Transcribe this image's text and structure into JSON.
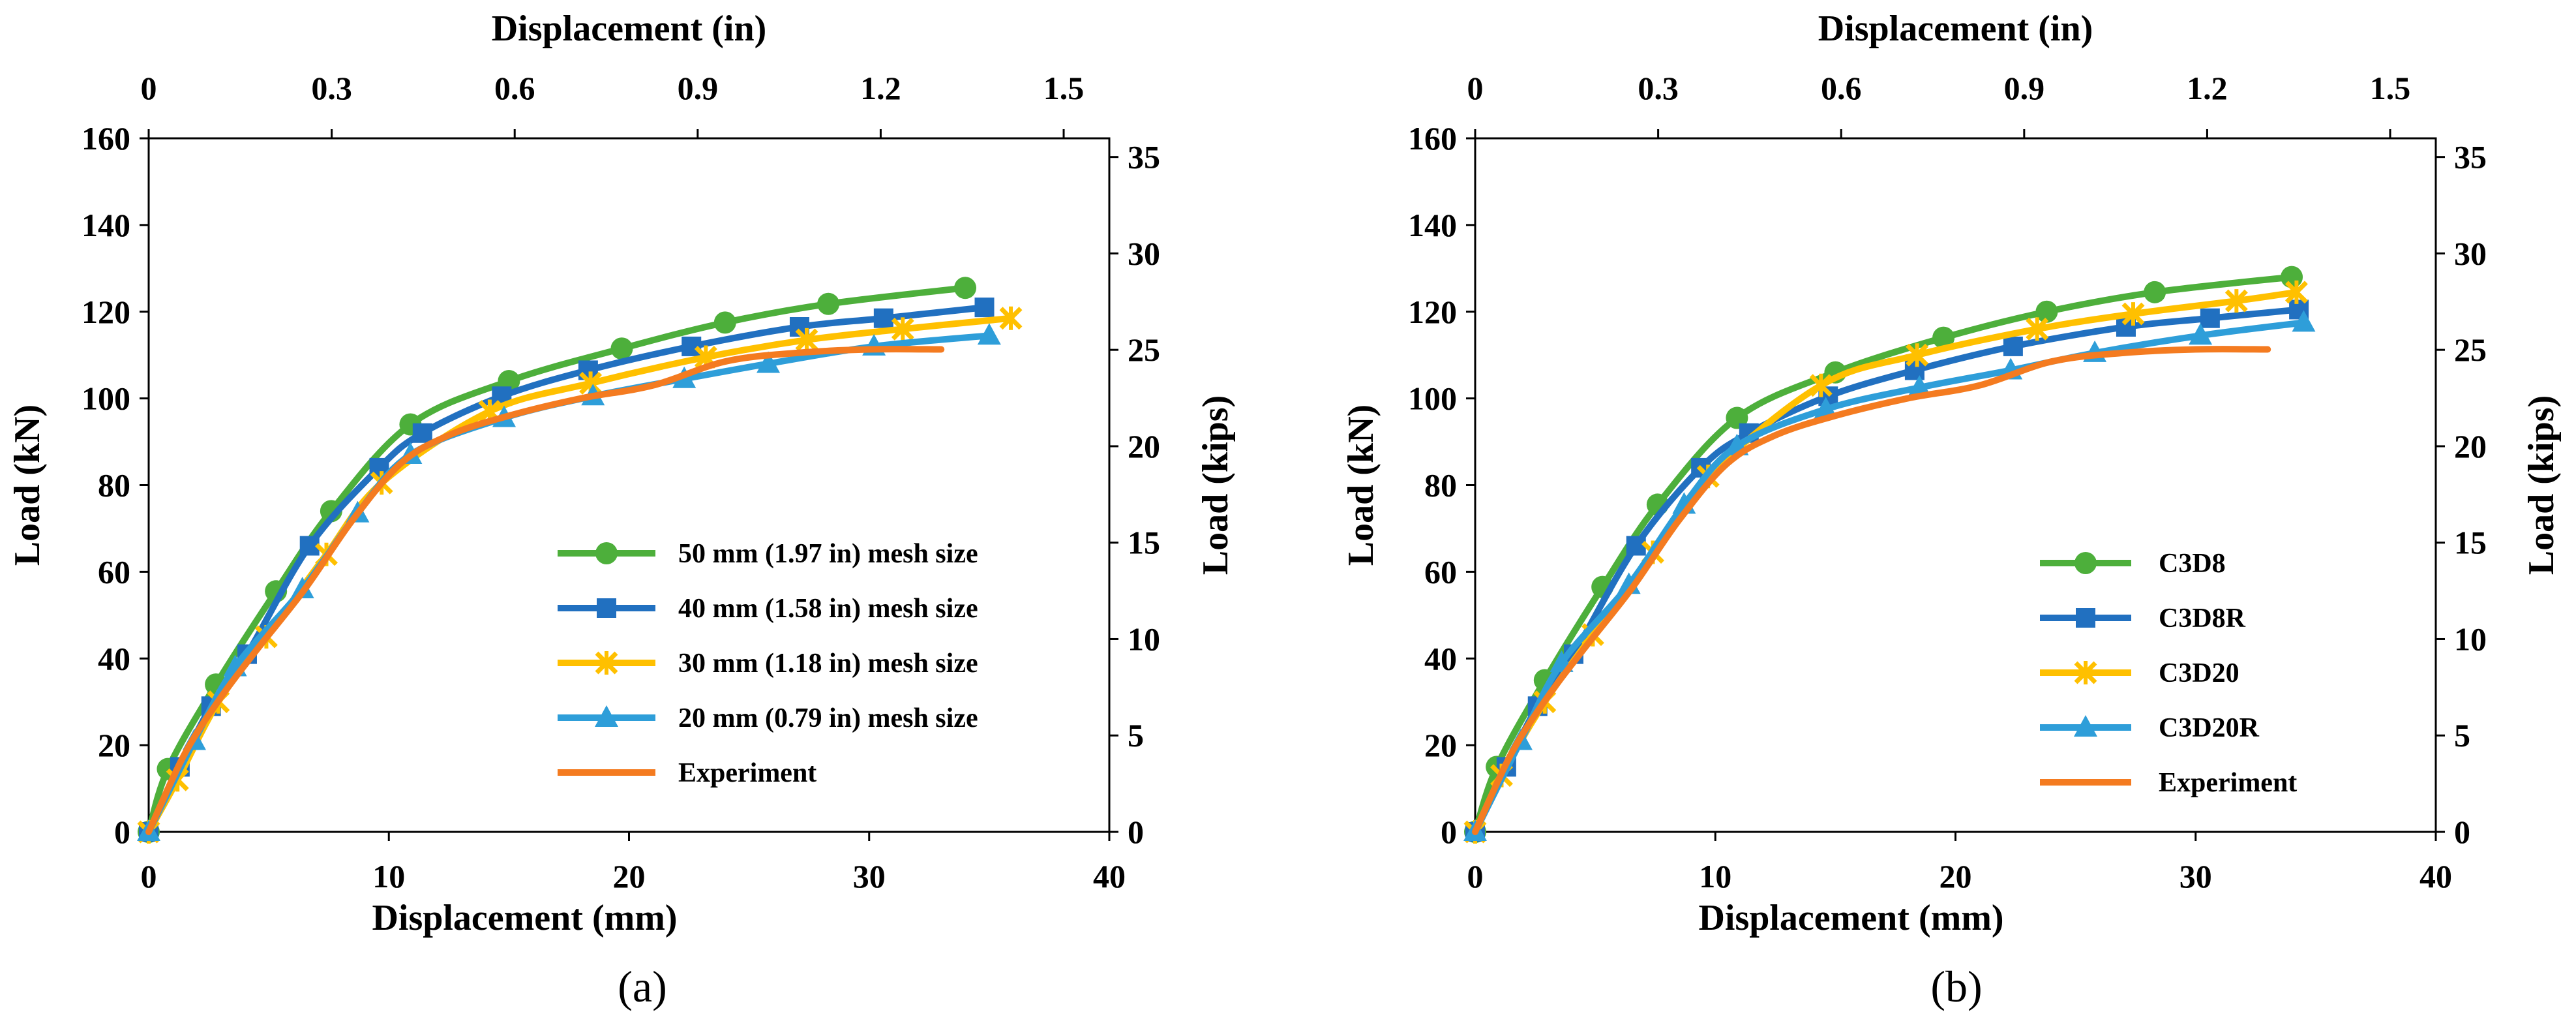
{
  "chart_data": [
    {
      "type": "line",
      "panel_label": "(a)",
      "xlabel": "Displacement (mm)",
      "x2label": "Displacement (in)",
      "ylabel": "Load (kN)",
      "y2label": "Load (kips)",
      "xlim": [
        0,
        40
      ],
      "x2lim": [
        0,
        1.5748
      ],
      "ylim": [
        0,
        160
      ],
      "y2lim": [
        0,
        35.97
      ],
      "xticks": [
        "0",
        "10",
        "20",
        "30",
        "40"
      ],
      "x2ticks": [
        "0",
        "0.3",
        "0.6",
        "0.9",
        "1.2",
        "1.5"
      ],
      "yticks": [
        "0",
        "20",
        "40",
        "60",
        "80",
        "100",
        "120",
        "140",
        "160"
      ],
      "y2ticks": [
        "0",
        "5",
        "10",
        "15",
        "20",
        "25",
        "30",
        "35"
      ],
      "legend_position": "bottom-right",
      "series": [
        {
          "name": "50 mm (1.97 in) mesh size",
          "color": "#4DAF3B",
          "marker": "circle",
          "x": [
            0,
            0.8,
            2.8,
            5.3,
            7.6,
            10.9,
            15,
            19.7,
            24,
            28.3,
            34
          ],
          "y": [
            0,
            14.5,
            34,
            55.5,
            74,
            94,
            104,
            111.5,
            117.5,
            121.8,
            125.5
          ]
        },
        {
          "name": "40 mm (1.58 in) mesh size",
          "color": "#2170C0",
          "marker": "square",
          "x": [
            0,
            1.3,
            2.6,
            4.1,
            6.7,
            9.6,
            11.4,
            14.7,
            18.3,
            22.6,
            27.1,
            30.6,
            34.8
          ],
          "y": [
            0,
            15,
            29,
            41,
            66,
            84,
            92,
            100.5,
            106.5,
            112,
            116.5,
            118.5,
            121
          ]
        },
        {
          "name": "30 mm (1.18 in) mesh size",
          "color": "#FFC000",
          "marker": "star",
          "x": [
            0,
            1.2,
            2.9,
            4.9,
            7.4,
            9.7,
            14.2,
            18.4,
            23.2,
            27.4,
            31.4,
            35.9
          ],
          "y": [
            0,
            12,
            30,
            45,
            64,
            80.5,
            97,
            103.5,
            109.5,
            113.5,
            116,
            118.5
          ]
        },
        {
          "name": "20 mm (0.79 in) mesh size",
          "color": "#2E9ED9",
          "marker": "triangle",
          "x": [
            0,
            1.9,
            3.6,
            6.4,
            8.7,
            10.9,
            14.8,
            18.5,
            22.3,
            25.8,
            30.2,
            35
          ],
          "y": [
            0,
            21,
            38,
            56,
            73.5,
            87,
            95.5,
            100.5,
            104.5,
            108,
            112,
            114.5
          ]
        },
        {
          "name": "Experiment",
          "color": "#F47B20",
          "marker": "none",
          "x": [
            0,
            1.5,
            3,
            4.5,
            6.5,
            8.5,
            10.5,
            12.5,
            15,
            18,
            21,
            24,
            27,
            30,
            33
          ],
          "y": [
            0,
            18,
            31,
            42,
            56,
            72,
            85,
            91.5,
            96,
            100,
            103,
            108.5,
            110.5,
            111.3,
            111.3
          ]
        }
      ]
    },
    {
      "type": "line",
      "panel_label": "(b)",
      "xlabel": "Displacement (mm)",
      "x2label": "Displacement (in)",
      "ylabel": "Load (kN)",
      "y2label": "Load (kips)",
      "xlim": [
        0,
        40
      ],
      "x2lim": [
        0,
        1.5748
      ],
      "ylim": [
        0,
        160
      ],
      "y2lim": [
        0,
        35.97
      ],
      "xticks": [
        "0",
        "10",
        "20",
        "30",
        "40"
      ],
      "x2ticks": [
        "0",
        "0.3",
        "0.6",
        "0.9",
        "1.2",
        "1.5"
      ],
      "yticks": [
        "0",
        "20",
        "40",
        "60",
        "80",
        "100",
        "120",
        "140",
        "160"
      ],
      "y2ticks": [
        "0",
        "5",
        "10",
        "15",
        "20",
        "25",
        "30",
        "35"
      ],
      "legend_position": "bottom-right",
      "series": [
        {
          "name": "C3D8",
          "color": "#4DAF3B",
          "marker": "circle",
          "x": [
            0,
            0.9,
            2.9,
            5.3,
            7.6,
            10.9,
            15,
            19.5,
            23.8,
            28.3,
            34
          ],
          "y": [
            0,
            15,
            35,
            56.5,
            75.5,
            95.5,
            106,
            114,
            120,
            124.5,
            128
          ]
        },
        {
          "name": "C3D8R",
          "color": "#2170C0",
          "marker": "square",
          "x": [
            0,
            1.3,
            2.6,
            4.1,
            6.7,
            9.4,
            11.4,
            14.7,
            18.3,
            22.4,
            27.1,
            30.6,
            34.3
          ],
          "y": [
            0,
            15,
            29,
            41,
            66,
            84,
            92,
            100.5,
            106.5,
            112,
            116.5,
            118.5,
            120.5
          ]
        },
        {
          "name": "C3D20",
          "color": "#FFC000",
          "marker": "star",
          "x": [
            0,
            1.1,
            2.9,
            4.9,
            7.4,
            9.7,
            14.4,
            18.4,
            23.4,
            27.4,
            31.7,
            34.2
          ],
          "y": [
            0,
            13,
            30,
            45.5,
            64.5,
            82,
            103,
            110,
            116,
            119.5,
            122.5,
            124.5
          ]
        },
        {
          "name": "C3D20R",
          "color": "#2E9ED9",
          "marker": "triangle",
          "x": [
            0,
            1.9,
            3.6,
            6.4,
            8.7,
            10.9,
            14.6,
            18.5,
            22.3,
            25.8,
            30.2,
            34.5
          ],
          "y": [
            0,
            21,
            39,
            57,
            75.5,
            89,
            97.5,
            102.5,
            106.5,
            110.5,
            114.5,
            117.5
          ]
        },
        {
          "name": "Experiment",
          "color": "#F47B20",
          "marker": "none",
          "x": [
            0,
            1.5,
            3,
            4.5,
            6.5,
            8.5,
            10.5,
            12.5,
            15,
            18,
            21,
            24,
            27,
            30,
            33
          ],
          "y": [
            0,
            18,
            31,
            42,
            56,
            72,
            85,
            91.5,
            96,
            100,
            103,
            108.5,
            110.5,
            111.3,
            111.3
          ]
        }
      ]
    }
  ]
}
